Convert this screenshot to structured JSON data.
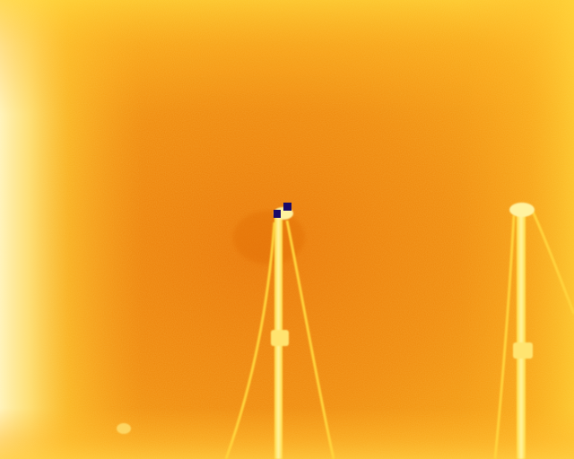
{
  "image": {
    "kind": "thermal-camera-frame",
    "palette": {
      "hot": "#fff7c8",
      "warm": "#ffd020",
      "mid": "#ff9a10",
      "cool": "#ee7a08",
      "cold_marker": "#1a0a6a"
    },
    "subjects": [
      {
        "name": "center-pole",
        "type": "guyed-mast"
      },
      {
        "name": "right-pole",
        "type": "guyed-mast"
      }
    ]
  }
}
